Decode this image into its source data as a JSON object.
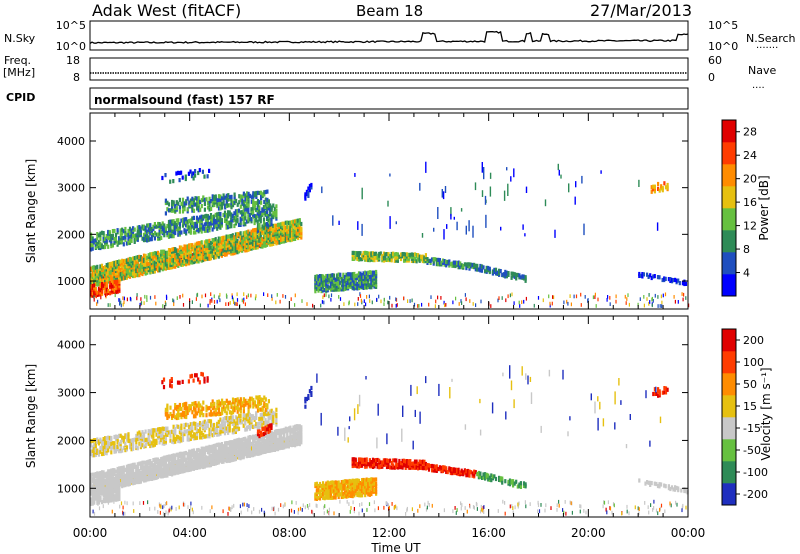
{
  "header": {
    "site": "Adak West (fitACF)",
    "beam": "Beam 18",
    "date": "27/Mar/2013"
  },
  "strips": {
    "nsky_label": "N.Sky",
    "nsearch_label": "N.Search",
    "nsearch_dots": ".......",
    "counts_ticks": [
      "10^5",
      "10^0"
    ],
    "freq_label": "Freq.",
    "freq_unit": "[MHz]",
    "freq_ticks": [
      "18",
      "8"
    ],
    "nave_label": "Nave",
    "nave_dots": "....",
    "nave_ticks": [
      "60",
      "0"
    ],
    "cpid_label": "CPID",
    "cpid_text": "normalsound (fast) 157 RF"
  },
  "chart_data": [
    {
      "type": "heatmap",
      "name": "power",
      "ylabel": "Slant Range [km]",
      "ylim": [
        400,
        4600
      ],
      "yticks": [
        "1000",
        "2000",
        "3000",
        "4000"
      ],
      "colorbar": {
        "label": "Power [dB]",
        "ticks": [
          "4",
          "8",
          "12",
          "16",
          "20",
          "24",
          "28"
        ],
        "range": [
          0,
          30
        ],
        "colors": [
          "#0000ff",
          "#1f4fbf",
          "#2e8b57",
          "#66c040",
          "#e6c010",
          "#ff8c00",
          "#ff3c00",
          "#e00000"
        ]
      }
    },
    {
      "type": "heatmap",
      "name": "velocity",
      "ylabel": "Slant Range [km]",
      "ylim": [
        400,
        4600
      ],
      "yticks": [
        "1000",
        "2000",
        "3000",
        "4000"
      ],
      "colorbar": {
        "label": "Velocity [m s⁻¹]",
        "ticks": [
          "200",
          "100",
          "50",
          "15",
          "-15",
          "-50",
          "-100",
          "-200"
        ],
        "colors": [
          "#1f2fbf",
          "#2e8b57",
          "#66c040",
          "#c8c8c8",
          "#e6c010",
          "#ff8c00",
          "#ff3c00",
          "#e00000"
        ]
      }
    }
  ],
  "time_axis": {
    "label": "Time UT",
    "ticks": [
      "00:00",
      "04:00",
      "08:00",
      "12:00",
      "16:00",
      "20:00",
      "00:00"
    ],
    "range_hours": [
      0,
      24
    ]
  }
}
